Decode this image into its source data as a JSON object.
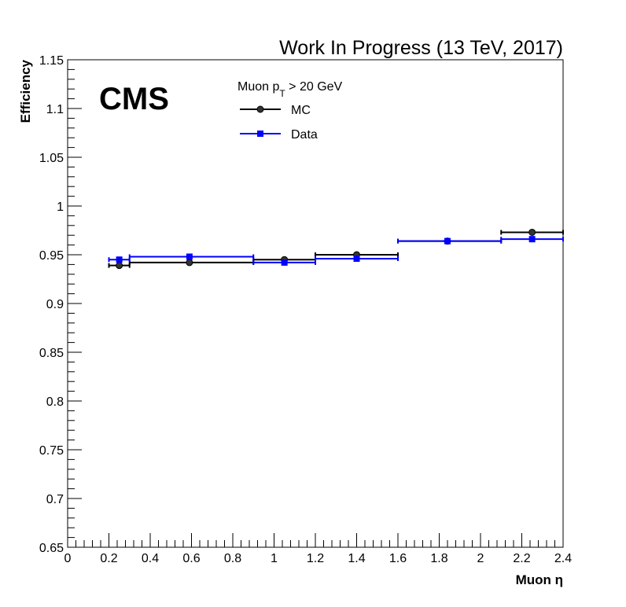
{
  "chart_data": {
    "type": "scatter",
    "title": "Work In Progress (13 TeV, 2017)",
    "experiment_label": "CMS",
    "legend_header": {
      "prefix": "Muon p",
      "subscript": "T",
      "suffix": " > 20 GeV"
    },
    "xlabel": "Muon  η",
    "ylabel": "Efficiency",
    "xlim": [
      0,
      2.4
    ],
    "ylim": [
      0.65,
      1.15
    ],
    "x_ticks": [
      "0",
      "0.2",
      "0.4",
      "0.6",
      "0.8",
      "1",
      "1.2",
      "1.4",
      "1.6",
      "1.8",
      "2",
      "2.2",
      "2.4"
    ],
    "y_ticks": [
      "0.65",
      "0.7",
      "0.75",
      "0.8",
      "0.85",
      "0.9",
      "0.95",
      "1",
      "1.05",
      "1.1",
      "1.15"
    ],
    "grid": false,
    "legend_position": "top-center",
    "series": [
      {
        "name": "MC",
        "color": "#000000",
        "marker": "circle",
        "points": [
          {
            "x": 0.25,
            "xlo": 0.2,
            "xhi": 0.3,
            "y": 0.939
          },
          {
            "x": 0.59,
            "xlo": 0.3,
            "xhi": 0.9,
            "y": 0.942
          },
          {
            "x": 1.05,
            "xlo": 0.9,
            "xhi": 1.2,
            "y": 0.945
          },
          {
            "x": 1.4,
            "xlo": 1.2,
            "xhi": 1.6,
            "y": 0.95
          },
          {
            "x": 1.84,
            "xlo": 1.6,
            "xhi": 2.1,
            "y": 0.964
          },
          {
            "x": 2.25,
            "xlo": 2.1,
            "xhi": 2.4,
            "y": 0.973
          }
        ]
      },
      {
        "name": "Data",
        "color": "#0000ff",
        "marker": "square",
        "points": [
          {
            "x": 0.25,
            "xlo": 0.2,
            "xhi": 0.3,
            "y": 0.945
          },
          {
            "x": 0.59,
            "xlo": 0.3,
            "xhi": 0.9,
            "y": 0.948
          },
          {
            "x": 1.05,
            "xlo": 0.9,
            "xhi": 1.2,
            "y": 0.942
          },
          {
            "x": 1.4,
            "xlo": 1.2,
            "xhi": 1.6,
            "y": 0.946
          },
          {
            "x": 1.84,
            "xlo": 1.6,
            "xhi": 2.1,
            "y": 0.964
          },
          {
            "x": 2.25,
            "xlo": 2.1,
            "xhi": 2.4,
            "y": 0.966
          }
        ]
      }
    ]
  }
}
